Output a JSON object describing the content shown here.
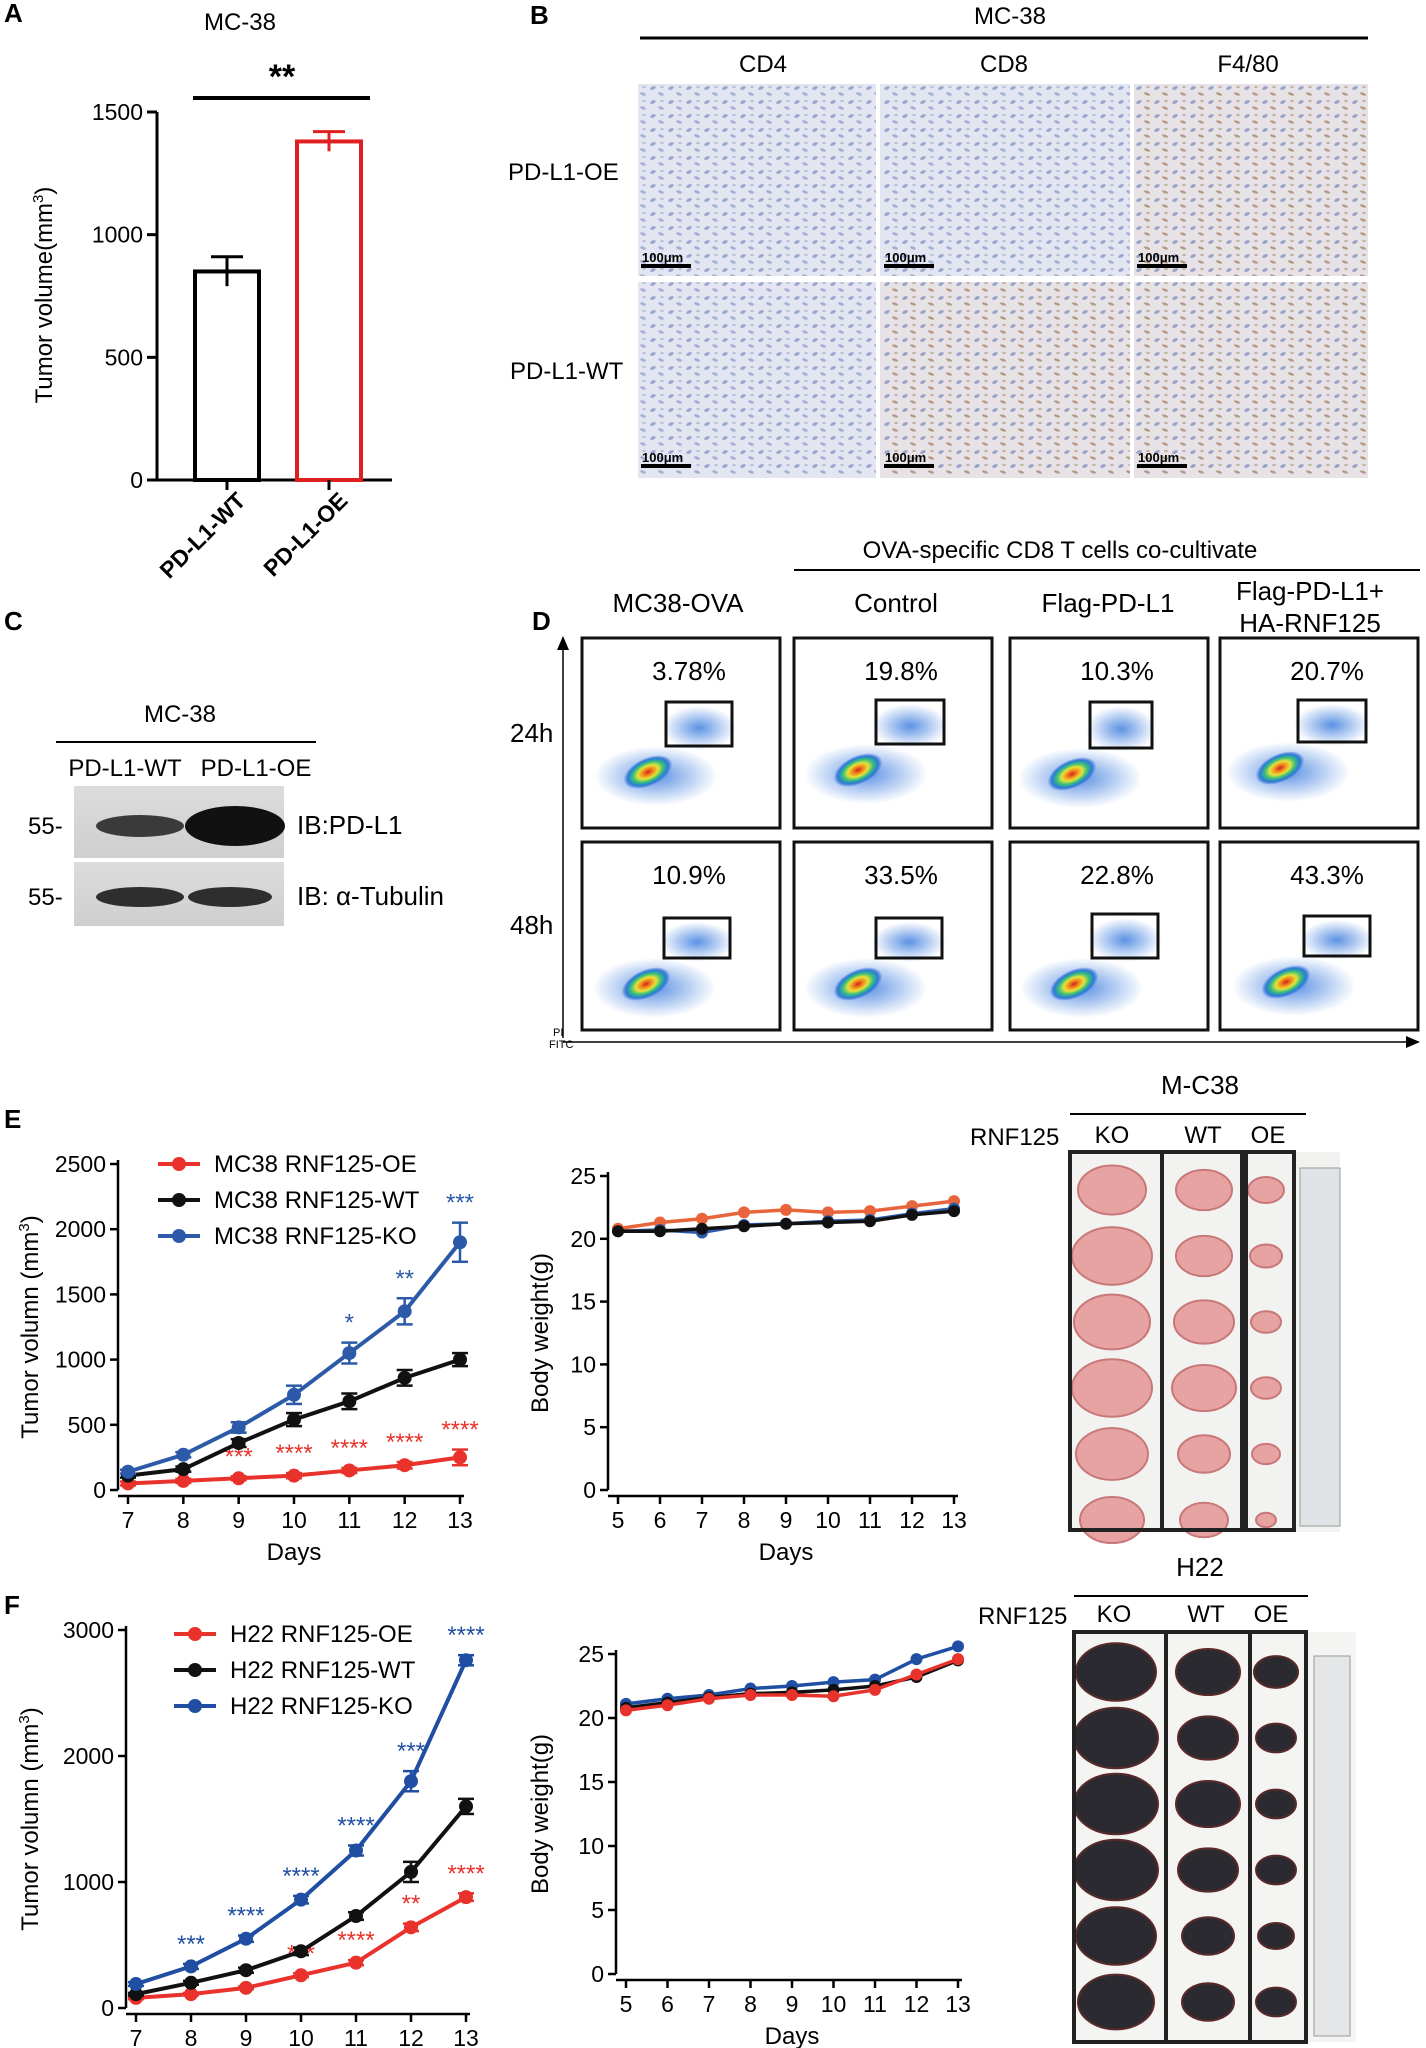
{
  "panels": {
    "A": "A",
    "B": "B",
    "C": "C",
    "D": "D",
    "E": "E",
    "F": "F"
  },
  "panel_a": {
    "title": "MC-38",
    "significance": "**",
    "ylabel": "Tumor volume(mm",
    "ylabel_sup": "3",
    "ylabel_end": ")"
  },
  "panel_b": {
    "header": "MC-38",
    "columns": [
      "CD4",
      "CD8",
      "F4/80"
    ],
    "rows": [
      "PD-L1-OE",
      "PD-L1-WT"
    ],
    "scale_bar": "100μm"
  },
  "panel_c": {
    "header": "MC-38",
    "lanes": [
      "PD-L1-WT",
      "PD-L1-OE"
    ],
    "markers": [
      "55-",
      "55-"
    ],
    "blots": [
      "IB:PD-L1",
      "IB: α-Tubulin"
    ]
  },
  "panel_d": {
    "header": "OVA-specific CD8 T cells  co-cultivate",
    "columns": [
      "MC38-OVA",
      "Control",
      "Flag-PD-L1",
      "Flag-PD-L1+",
      "HA-RNF125"
    ],
    "rows": [
      "24h",
      "48h"
    ],
    "percent_24h": [
      "3.78%",
      "19.8%",
      "10.3%",
      "20.7%"
    ],
    "percent_48h": [
      "10.9%",
      "33.5%",
      "22.8%",
      "43.3%"
    ],
    "y_axis": "PI",
    "x_axis": "FITC"
  },
  "panel_e": {
    "photo_title": "M-C38",
    "photo_row_label": "RNF125",
    "photo_groups": [
      "KO",
      "WT",
      "OE"
    ],
    "bw_ylabel": "Body weight(g)",
    "bw_xlabel": "Days"
  },
  "panel_f": {
    "photo_title": "H22",
    "photo_row_label": "RNF125",
    "photo_groups": [
      "KO",
      "WT",
      "OE"
    ],
    "bw_ylabel": "Body weight(g)",
    "bw_xlabel": "Days"
  },
  "colors": {
    "red": "#e8322b",
    "black": "#111111",
    "blue": "#2d5aa8",
    "bar_red": "#e02020"
  },
  "chart_data": [
    {
      "id": "A",
      "type": "bar",
      "categories": [
        "PD-L1-WT",
        "PD-L1-OE"
      ],
      "values": [
        850,
        1380
      ],
      "errors": [
        60,
        40
      ],
      "bar_colors": [
        "#000000",
        "#e02020"
      ],
      "ylim": [
        0,
        1500
      ],
      "yticks": [
        0,
        500,
        1000,
        1500
      ]
    },
    {
      "id": "E-volume",
      "type": "line",
      "x": [
        7,
        8,
        9,
        10,
        11,
        12,
        13
      ],
      "xlabel": "Days",
      "ylabel": "Tumor volumn (mm",
      "ylabel_sup": "3",
      "ylim": [
        0,
        2500
      ],
      "yticks": [
        0,
        500,
        1000,
        1500,
        2000,
        2500
      ],
      "series": [
        {
          "name": "MC38 RNF125-OE",
          "color": "#e8322b",
          "values": [
            50,
            70,
            90,
            110,
            150,
            190,
            250
          ],
          "errors": [
            15,
            15,
            15,
            20,
            20,
            25,
            60
          ],
          "stars": [
            "",
            "",
            "***",
            "****",
            "****",
            "****",
            "****"
          ]
        },
        {
          "name": "MC38 RNF125-WT",
          "color": "#111111",
          "values": [
            110,
            160,
            360,
            540,
            680,
            860,
            1000
          ],
          "errors": [
            15,
            20,
            30,
            50,
            60,
            60,
            50
          ],
          "stars": [
            "",
            "",
            "",
            "",
            "",
            "",
            ""
          ]
        },
        {
          "name": "MC38 RNF125-KO",
          "color": "#2d5aa8",
          "values": [
            140,
            270,
            480,
            730,
            1050,
            1370,
            1900
          ],
          "errors": [
            15,
            20,
            40,
            70,
            80,
            100,
            150
          ],
          "stars": [
            "",
            "",
            "",
            "",
            "*",
            "**",
            "***"
          ]
        }
      ]
    },
    {
      "id": "E-weight",
      "type": "line",
      "x": [
        5,
        6,
        7,
        8,
        9,
        10,
        11,
        12,
        13
      ],
      "xlabel": "Days",
      "ylabel": "Body weight(g)",
      "ylim": [
        0,
        25
      ],
      "yticks": [
        0,
        5,
        10,
        15,
        20,
        25
      ],
      "series": [
        {
          "color": "#e8643b",
          "values": [
            20.8,
            21.3,
            21.6,
            22.1,
            22.3,
            22.1,
            22.2,
            22.6,
            23.0
          ]
        },
        {
          "color": "#2d5aa8",
          "values": [
            20.6,
            20.7,
            20.5,
            21.1,
            21.2,
            21.4,
            21.5,
            22.0,
            22.4
          ]
        },
        {
          "color": "#111111",
          "values": [
            20.6,
            20.6,
            20.8,
            21.0,
            21.2,
            21.3,
            21.4,
            21.9,
            22.2
          ]
        }
      ]
    },
    {
      "id": "F-volume",
      "type": "line",
      "x": [
        7,
        8,
        9,
        10,
        11,
        12,
        13
      ],
      "xlabel": "Days",
      "ylabel": "Tumor volumn (mm",
      "ylabel_sup": "3",
      "ylim": [
        0,
        3000
      ],
      "yticks": [
        0,
        1000,
        2000,
        3000
      ],
      "series": [
        {
          "name": "H22 RNF125-OE",
          "color": "#e8322b",
          "values": [
            80,
            110,
            160,
            260,
            360,
            640,
            880
          ],
          "errors": [
            10,
            10,
            10,
            15,
            20,
            30,
            30
          ],
          "stars": [
            "",
            "",
            "",
            "***",
            "****",
            "**",
            "****"
          ]
        },
        {
          "name": "H22 RNF125-WT",
          "color": "#111111",
          "values": [
            110,
            200,
            300,
            450,
            730,
            1080,
            1600
          ],
          "errors": [
            10,
            15,
            20,
            30,
            30,
            80,
            60
          ],
          "stars": [
            "",
            "",
            "",
            "",
            "",
            "",
            ""
          ]
        },
        {
          "name": "H22 RNF125-KO",
          "color": "#1f4ea3",
          "values": [
            190,
            330,
            550,
            860,
            1250,
            1800,
            2760
          ],
          "errors": [
            15,
            20,
            25,
            30,
            40,
            80,
            40
          ],
          "stars": [
            "",
            "***",
            "****",
            "****",
            "****",
            "***",
            "****"
          ]
        }
      ]
    },
    {
      "id": "F-weight",
      "type": "line",
      "x": [
        5,
        6,
        7,
        8,
        9,
        10,
        11,
        12,
        13
      ],
      "xlabel": "Days",
      "ylabel": "Body weight(g)",
      "ylim": [
        0,
        25
      ],
      "yticks": [
        0,
        5,
        10,
        15,
        20,
        25
      ],
      "series": [
        {
          "color": "#1f4ea3",
          "values": [
            21.1,
            21.5,
            21.8,
            22.3,
            22.5,
            22.8,
            23.0,
            24.6,
            25.6
          ]
        },
        {
          "color": "#111111",
          "values": [
            20.8,
            21.2,
            21.6,
            21.9,
            22.0,
            22.2,
            22.5,
            23.2,
            24.5
          ]
        },
        {
          "color": "#e8322b",
          "values": [
            20.6,
            21.0,
            21.5,
            21.8,
            21.8,
            21.7,
            22.2,
            23.4,
            24.6
          ]
        }
      ]
    }
  ]
}
